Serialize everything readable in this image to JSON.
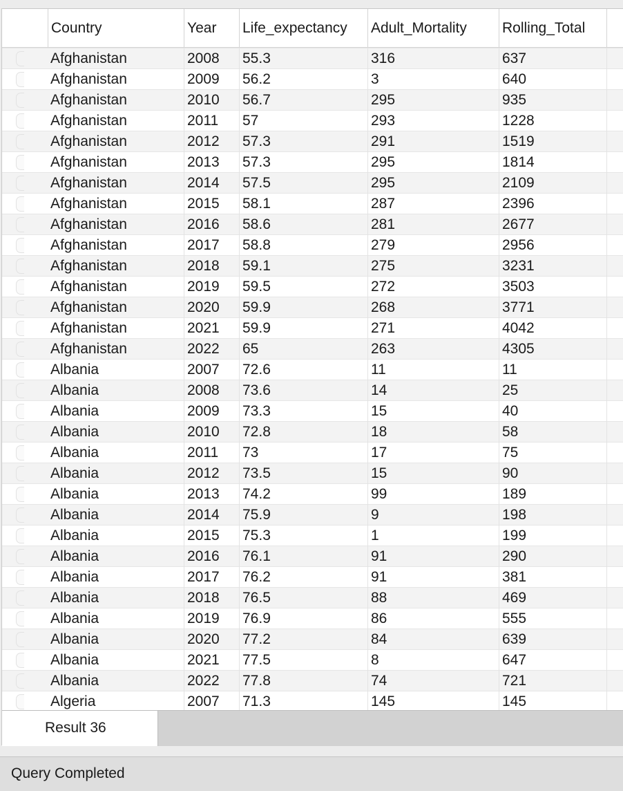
{
  "grid": {
    "columns": [
      "Country",
      "Year",
      "Life_expectancy",
      "Adult_Mortality",
      "Rolling_Total"
    ],
    "rows": [
      [
        "Afghanistan",
        "2008",
        "55.3",
        "316",
        "637"
      ],
      [
        "Afghanistan",
        "2009",
        "56.2",
        "3",
        "640"
      ],
      [
        "Afghanistan",
        "2010",
        "56.7",
        "295",
        "935"
      ],
      [
        "Afghanistan",
        "2011",
        "57",
        "293",
        "1228"
      ],
      [
        "Afghanistan",
        "2012",
        "57.3",
        "291",
        "1519"
      ],
      [
        "Afghanistan",
        "2013",
        "57.3",
        "295",
        "1814"
      ],
      [
        "Afghanistan",
        "2014",
        "57.5",
        "295",
        "2109"
      ],
      [
        "Afghanistan",
        "2015",
        "58.1",
        "287",
        "2396"
      ],
      [
        "Afghanistan",
        "2016",
        "58.6",
        "281",
        "2677"
      ],
      [
        "Afghanistan",
        "2017",
        "58.8",
        "279",
        "2956"
      ],
      [
        "Afghanistan",
        "2018",
        "59.1",
        "275",
        "3231"
      ],
      [
        "Afghanistan",
        "2019",
        "59.5",
        "272",
        "3503"
      ],
      [
        "Afghanistan",
        "2020",
        "59.9",
        "268",
        "3771"
      ],
      [
        "Afghanistan",
        "2021",
        "59.9",
        "271",
        "4042"
      ],
      [
        "Afghanistan",
        "2022",
        "65",
        "263",
        "4305"
      ],
      [
        "Albania",
        "2007",
        "72.6",
        "11",
        "11"
      ],
      [
        "Albania",
        "2008",
        "73.6",
        "14",
        "25"
      ],
      [
        "Albania",
        "2009",
        "73.3",
        "15",
        "40"
      ],
      [
        "Albania",
        "2010",
        "72.8",
        "18",
        "58"
      ],
      [
        "Albania",
        "2011",
        "73",
        "17",
        "75"
      ],
      [
        "Albania",
        "2012",
        "73.5",
        "15",
        "90"
      ],
      [
        "Albania",
        "2013",
        "74.2",
        "99",
        "189"
      ],
      [
        "Albania",
        "2014",
        "75.9",
        "9",
        "198"
      ],
      [
        "Albania",
        "2015",
        "75.3",
        "1",
        "199"
      ],
      [
        "Albania",
        "2016",
        "76.1",
        "91",
        "290"
      ],
      [
        "Albania",
        "2017",
        "76.2",
        "91",
        "381"
      ],
      [
        "Albania",
        "2018",
        "76.5",
        "88",
        "469"
      ],
      [
        "Albania",
        "2019",
        "76.9",
        "86",
        "555"
      ],
      [
        "Albania",
        "2020",
        "77.2",
        "84",
        "639"
      ],
      [
        "Albania",
        "2021",
        "77.5",
        "8",
        "647"
      ],
      [
        "Albania",
        "2022",
        "77.8",
        "74",
        "721"
      ],
      [
        "Algeria",
        "2007",
        "71.3",
        "145",
        "145"
      ]
    ]
  },
  "tabs": [
    {
      "label": "Result 36"
    }
  ],
  "status": {
    "text": "Query Completed"
  }
}
